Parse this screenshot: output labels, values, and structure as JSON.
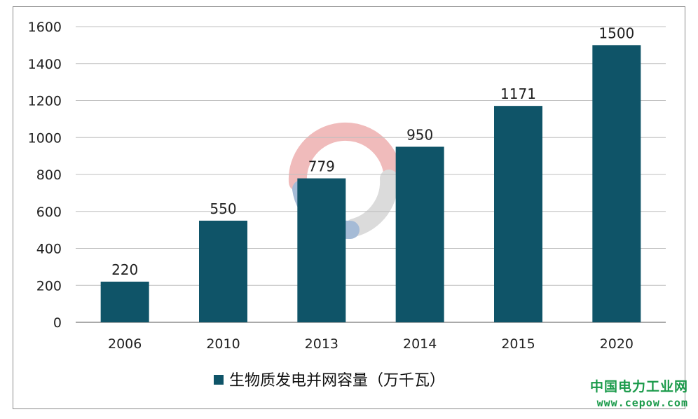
{
  "chart_data": {
    "type": "bar",
    "categories": [
      "2006",
      "2010",
      "2013",
      "2014",
      "2015",
      "2020"
    ],
    "series": [
      {
        "name": "生物质发电并网容量（万千瓦）",
        "values": [
          220,
          550,
          779,
          950,
          1171,
          1500
        ],
        "color": "#0f5468"
      }
    ],
    "data_labels": [
      "220",
      "550",
      "779",
      "950",
      "1171",
      "1500"
    ],
    "y_ticks": [
      0,
      200,
      400,
      600,
      800,
      1000,
      1200,
      1400,
      1600
    ],
    "ylim": [
      0,
      1600
    ],
    "grid": true,
    "legend_position": "bottom-center"
  },
  "watermark": {
    "name": "中国电力工业网",
    "url": "www.cepow.com",
    "color": "#1a9a4a"
  }
}
